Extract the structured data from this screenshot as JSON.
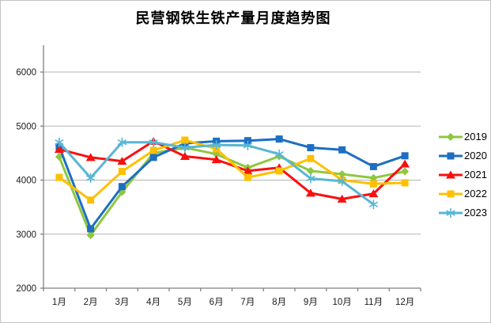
{
  "chart_data": {
    "type": "line",
    "title": "民营钢铁生铁产量月度趋势图",
    "xlabel": "",
    "ylabel": "",
    "categories": [
      "1月",
      "2月",
      "3月",
      "4月",
      "5月",
      "6月",
      "7月",
      "8月",
      "9月",
      "10月",
      "11月",
      "12月"
    ],
    "series": [
      {
        "name": "2019",
        "color": "#8FC73E",
        "marker": "diamond",
        "values": [
          4430,
          2980,
          3780,
          4500,
          4600,
          4480,
          4230,
          4440,
          4170,
          4110,
          4040,
          4160
        ]
      },
      {
        "name": "2020",
        "color": "#1C6FC2",
        "marker": "square",
        "values": [
          4620,
          3100,
          3880,
          4420,
          4680,
          4720,
          4730,
          4760,
          4600,
          4560,
          4250,
          4450
        ]
      },
      {
        "name": "2021",
        "color": "#FA0F0F",
        "marker": "triangle",
        "values": [
          4570,
          4420,
          4350,
          4720,
          4440,
          4380,
          4170,
          4230,
          3760,
          3650,
          3750,
          4300
        ]
      },
      {
        "name": "2022",
        "color": "#FFC000",
        "marker": "square",
        "values": [
          4050,
          3630,
          4160,
          4550,
          4740,
          4580,
          4050,
          4170,
          4400,
          4000,
          3930,
          3950
        ]
      },
      {
        "name": "2023",
        "color": "#58B6D4",
        "marker": "star",
        "values": [
          4700,
          4040,
          4700,
          4700,
          4600,
          4650,
          4640,
          4480,
          4030,
          3980,
          3550,
          null
        ]
      }
    ],
    "ylim": [
      2000,
      6500
    ],
    "yticks": [
      2000,
      3000,
      4000,
      5000,
      6000
    ],
    "grid": true,
    "legend_position": "right",
    "colors": {
      "axis": "#808080",
      "gridline": "#b3b3b3",
      "tick_label": "#1a1a1a",
      "frame_border": "#c3c3c3"
    }
  }
}
